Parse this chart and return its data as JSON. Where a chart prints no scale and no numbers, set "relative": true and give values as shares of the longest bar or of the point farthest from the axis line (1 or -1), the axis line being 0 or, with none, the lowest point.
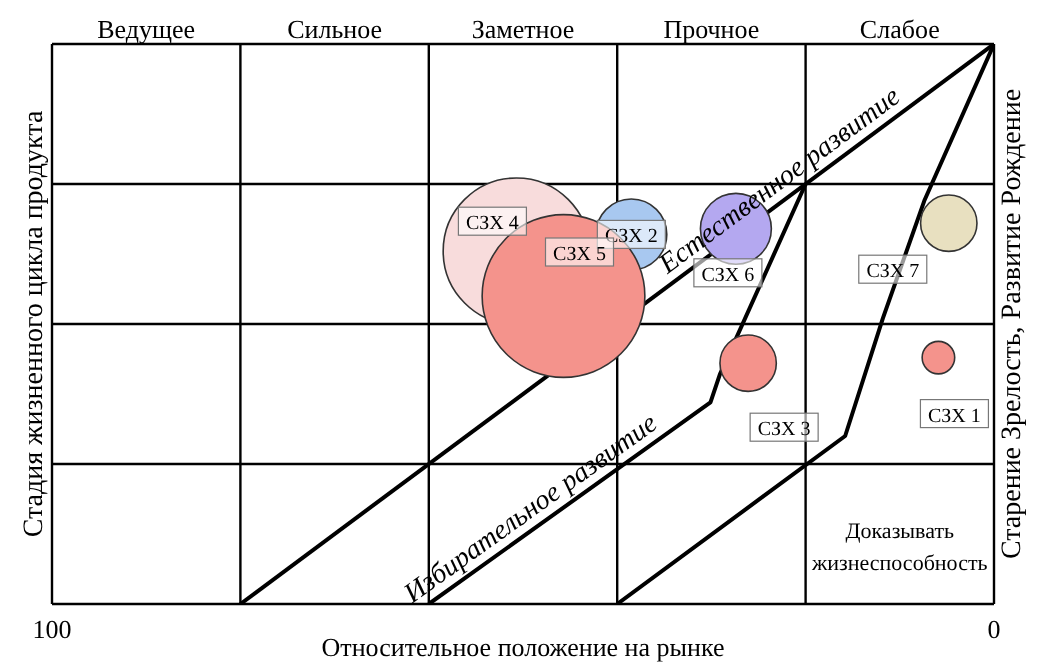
{
  "chart_data": {
    "type": "bubble",
    "xlabel": "Относительное положение на рынке",
    "ylabel": "Стадия жизненного цикла продукта",
    "y2label": "Старение  Зрелость, Развитие  Рождение",
    "xlim": [
      100,
      0
    ],
    "xticks": [
      100,
      {
        "value": 80,
        "label": null
      },
      {
        "value": 60,
        "label": null
      },
      {
        "value": 40,
        "label": null
      },
      {
        "value": 20,
        "label": null
      },
      0
    ],
    "relative": true,
    "tick_labels": "x",
    "grid": true,
    "legend": false,
    "series": [
      {
        "name": "СЗХ 1",
        "color": "#f4938c",
        "x": [
          5.9
        ],
        "values": [
          0.44
        ],
        "sizes": [
          0.04
        ]
      },
      {
        "name": "СЗХ 2",
        "color": "#a8c8f0",
        "x": [
          38.5
        ],
        "values": [
          0.66
        ],
        "sizes": [
          0.19
        ]
      },
      {
        "name": "СЗХ 3",
        "color": "#f4938c",
        "x": [
          26.1
        ],
        "values": [
          0.43
        ],
        "sizes": [
          0.12
        ]
      },
      {
        "name": "СЗХ 4",
        "color": "#f8dcdc",
        "x": [
          50.7
        ],
        "values": [
          0.63
        ],
        "sizes": [
          0.81
        ]
      },
      {
        "name": "СЗХ 5",
        "color": "#f4938c",
        "x": [
          45.7
        ],
        "values": [
          0.55
        ],
        "sizes": [
          1
        ]
      },
      {
        "name": "СЗХ 6",
        "color": "#b4a8f0",
        "x": [
          27.4
        ],
        "values": [
          0.67
        ],
        "sizes": [
          0.19
        ]
      },
      {
        "name": "СЗХ 7",
        "color": "#e8e0c0",
        "x": [
          4.8
        ],
        "values": [
          0.68
        ],
        "sizes": [
          0.12
        ]
      },
      {
        "type": "line",
        "name": "Естественное развитие",
        "color": "#000000",
        "x": [
          80,
          0
        ],
        "values": [
          0,
          1
        ]
      },
      {
        "type": "line",
        "name": "Избирательное развитие",
        "color": "#000000",
        "x": [
          60,
          30.1,
          29.1,
          20
        ],
        "values": [
          0,
          0.36,
          0.41,
          0.75
        ]
      },
      {
        "type": "line",
        "color": "#000000",
        "x": [
          40,
          15.8,
          11.8,
          7.4,
          0
        ],
        "values": [
          0,
          0.3,
          0.51,
          0.72,
          1
        ]
      }
    ],
    "annotations": [
      "Ведущее",
      "Сильное",
      "Заметное",
      "Прочное",
      "Слабое",
      "Доказывать жизнеспособность"
    ]
  }
}
